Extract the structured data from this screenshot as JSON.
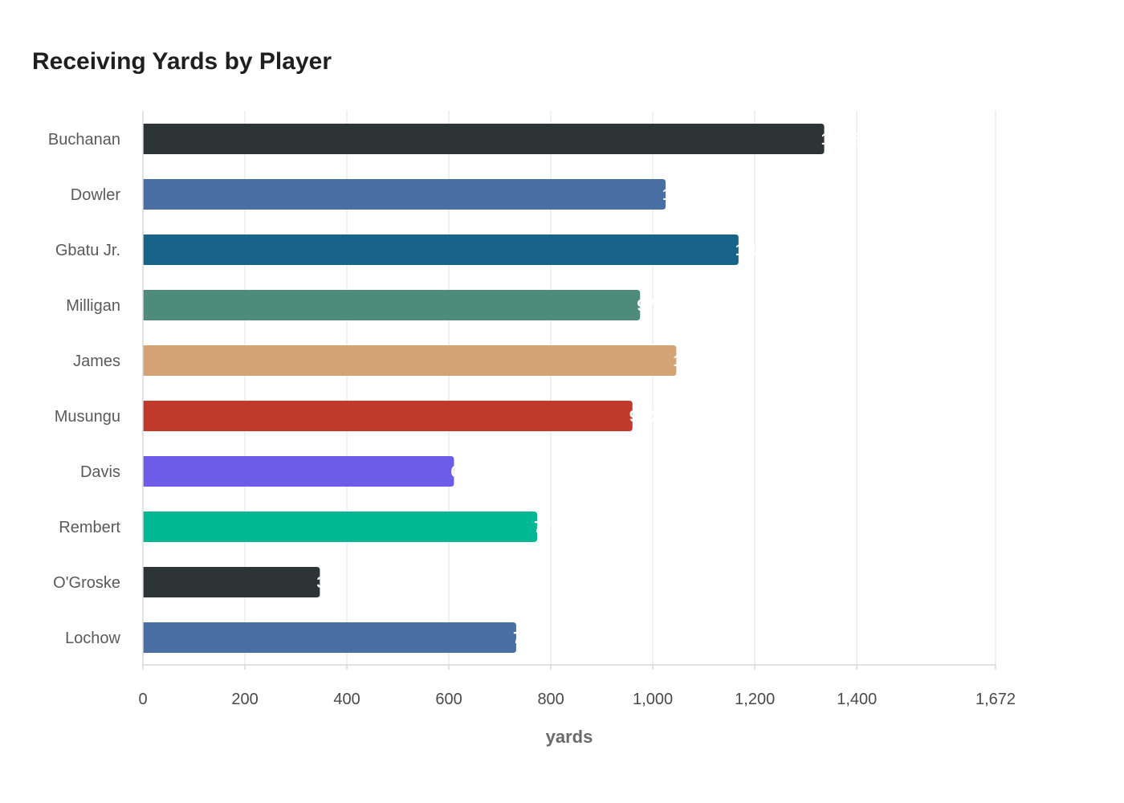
{
  "chart_data": {
    "type": "bar",
    "orientation": "horizontal",
    "title": "Receiving Yards by Player",
    "xlabel": "yards",
    "ylabel": "",
    "categories": [
      "Buchanan",
      "Dowler",
      "Gbatu Jr.",
      "Milligan",
      "James",
      "Musungu",
      "Davis",
      "Rembert",
      "O'Groske",
      "Lochow"
    ],
    "values": [
      1336,
      1025,
      1168,
      975,
      1046,
      960,
      610,
      773,
      347,
      732
    ],
    "colors": [
      "#2d3436",
      "#4a6fa5",
      "#186489",
      "#4f8b7a",
      "#d4a373",
      "#c0392b",
      "#6c5ce7",
      "#00b894",
      "#2d3436",
      "#4a6fa5"
    ],
    "xlim": [
      0,
      1672
    ],
    "xticks": [
      0,
      200,
      400,
      600,
      800,
      1000,
      1200,
      1400,
      1672
    ],
    "xtick_labels": [
      "0",
      "200",
      "400",
      "600",
      "800",
      "1,000",
      "1,200",
      "1,400",
      "1,672"
    ],
    "grid": true,
    "legend": "none",
    "value_labels_shown": true
  }
}
